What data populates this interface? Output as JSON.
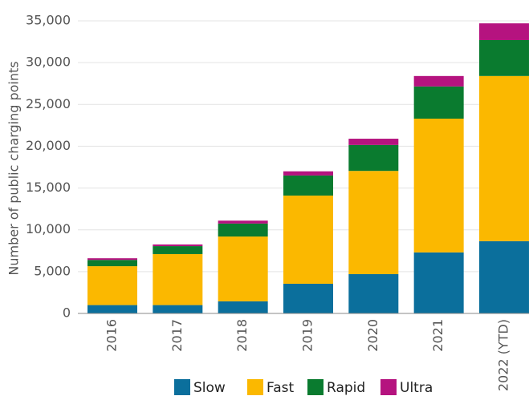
{
  "chart_data": {
    "type": "stacked_bar",
    "y_label": "Number of public charging points",
    "categories": [
      "2016",
      "2017",
      "2018",
      "2019",
      "2020",
      "2021",
      "2022 (YTD)"
    ],
    "series": [
      {
        "name": "Slow",
        "color": "#0b6f9c",
        "values": [
          1000,
          1000,
          1450,
          3550,
          4700,
          7300,
          8650
        ]
      },
      {
        "name": "Fast",
        "color": "#fbb800",
        "values": [
          4650,
          6100,
          7750,
          10550,
          12350,
          16000,
          19750
        ]
      },
      {
        "name": "Rapid",
        "color": "#0a7b2f",
        "values": [
          750,
          950,
          1550,
          2400,
          3100,
          3850,
          4300
        ]
      },
      {
        "name": "Ultra",
        "color": "#b5137f",
        "values": [
          200,
          200,
          350,
          500,
          750,
          1250,
          2000
        ]
      }
    ],
    "ylim": [
      0,
      35000
    ],
    "yticks": [
      0,
      {
        "value": 5000,
        "label": "5,000"
      },
      {
        "value": 10000,
        "label": "10,000"
      },
      {
        "value": 15000,
        "label": "15,000"
      },
      {
        "value": 20000,
        "label": "20,000"
      },
      {
        "value": 25000,
        "label": "25,000"
      },
      {
        "value": 30000,
        "label": "30,000"
      },
      {
        "value": 35000,
        "label": "35,000"
      }
    ],
    "grid": true,
    "legend": "bottom"
  }
}
